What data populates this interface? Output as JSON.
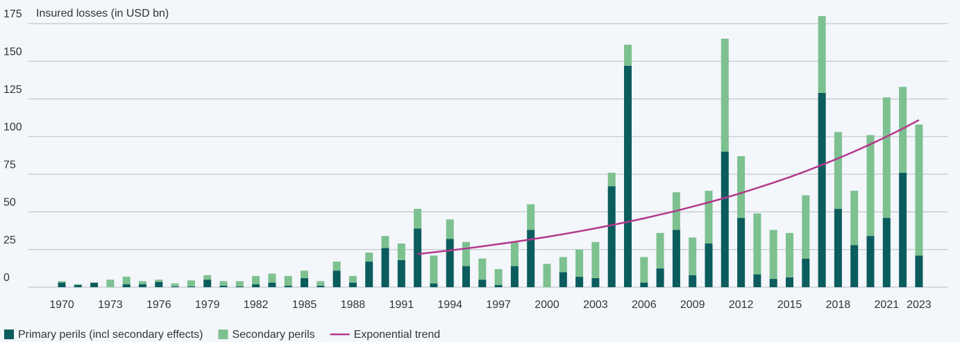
{
  "chart_data": {
    "type": "bar",
    "stacked": true,
    "y_axis_label": "Insured losses (in USD bn)",
    "categories": [
      "1970",
      null,
      null,
      "1973",
      null,
      null,
      "1976",
      null,
      null,
      "1979",
      null,
      null,
      "1982",
      null,
      null,
      "1985",
      null,
      null,
      "1988",
      null,
      null,
      "1991",
      null,
      null,
      "1994",
      null,
      null,
      "1997",
      null,
      null,
      "2000",
      null,
      null,
      "2003",
      null,
      null,
      "2006",
      null,
      null,
      "2009",
      null,
      null,
      "2012",
      null,
      null,
      "2015",
      null,
      null,
      "2018",
      null,
      null,
      "2021",
      null,
      "2023"
    ],
    "series": [
      {
        "name": "Primary perils (incl secondary effects)",
        "color": "#0b5c5d",
        "type": "bar",
        "values": [
          3,
          1.5,
          3,
          0,
          2,
          2,
          3.5,
          0.5,
          0.5,
          5,
          1,
          0.5,
          2,
          3,
          1,
          6,
          1,
          11,
          3,
          17,
          26,
          18,
          39,
          2.5,
          32,
          14,
          5,
          1.5,
          14,
          38,
          0,
          10,
          7,
          6,
          67,
          147,
          3,
          12.5,
          38,
          8,
          29,
          90,
          46,
          8.5,
          5.5,
          6.5,
          19,
          129,
          52,
          28,
          34,
          46,
          76,
          21
        ]
      },
      {
        "name": "Secondary perils",
        "color": "#7dc190",
        "type": "bar",
        "values": [
          1,
          0.5,
          0,
          5,
          5,
          2,
          1.5,
          2,
          4,
          3,
          3,
          3.5,
          5.5,
          6,
          6.5,
          5,
          3,
          6,
          4.5,
          6,
          8,
          11,
          13,
          18.5,
          13,
          16,
          14,
          10.5,
          16,
          17,
          15.5,
          10,
          18,
          24,
          9,
          14,
          17,
          23.5,
          25,
          25,
          35,
          75,
          41,
          40.5,
          32.5,
          29.5,
          42,
          51,
          51,
          36,
          67,
          80,
          57,
          87
        ]
      },
      {
        "name": "Exponential trend",
        "color": "#b3378c",
        "type": "line",
        "values": [
          null,
          null,
          null,
          null,
          null,
          null,
          null,
          null,
          null,
          null,
          null,
          null,
          null,
          null,
          null,
          null,
          null,
          null,
          null,
          null,
          null,
          null,
          22,
          23.2,
          24.4,
          25.7,
          27.1,
          28.6,
          30.1,
          31.7,
          33.4,
          35.2,
          37.1,
          39.1,
          41.2,
          43.4,
          45.7,
          48.2,
          50.7,
          53.5,
          56.3,
          59.3,
          62.5,
          65.9,
          69.4,
          73.1,
          77,
          81.2,
          85.5,
          90.1,
          94.9,
          100,
          105.3,
          111
        ]
      }
    ],
    "ylim": [
      0,
      175
    ],
    "yticks": [
      0,
      25,
      50,
      75,
      100,
      125,
      150,
      175
    ],
    "grid": true
  }
}
